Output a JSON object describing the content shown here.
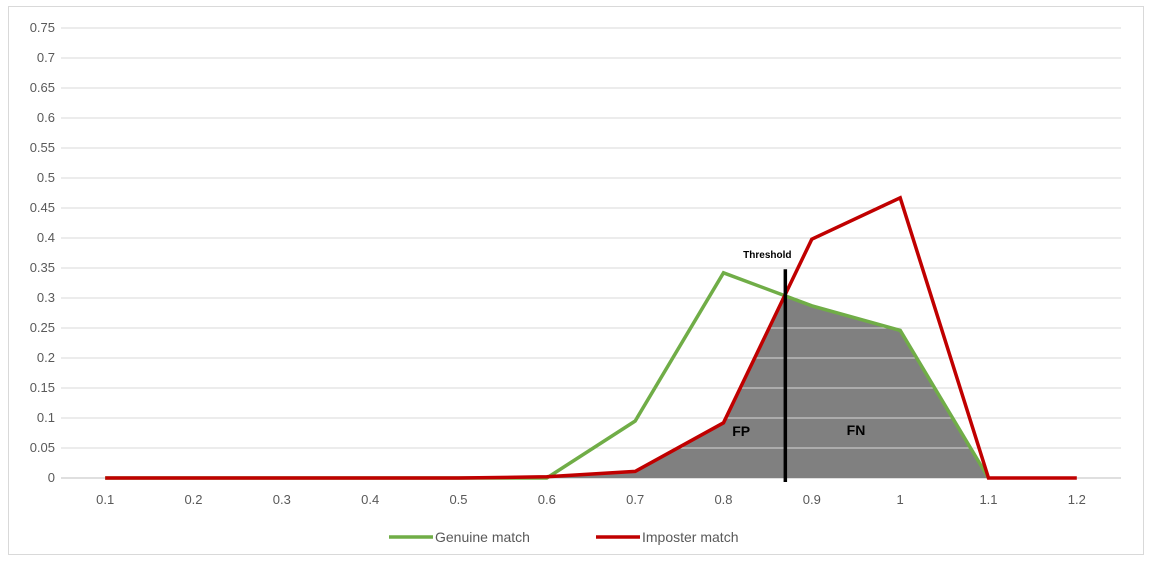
{
  "chart_data": {
    "type": "line",
    "x": [
      0.1,
      0.2,
      0.3,
      0.4,
      0.5,
      0.6,
      0.7,
      0.8,
      0.9,
      1,
      1.1,
      1.2
    ],
    "x_tick_labels": [
      "0.1",
      "0.2",
      "0.3",
      "0.4",
      "0.5",
      "0.6",
      "0.7",
      "0.8",
      "0.9",
      "1",
      "1.1",
      "1.2"
    ],
    "y_tick_labels": [
      "0",
      "0.05",
      "0.1",
      "0.15",
      "0.2",
      "0.25",
      "0.3",
      "0.35",
      "0.4",
      "0.45",
      "0.5",
      "0.55",
      "0.6",
      "0.65",
      "0.7",
      "0.75"
    ],
    "ylim": [
      0,
      0.75
    ],
    "grid": "horizontal",
    "legend_position": "bottom",
    "series": [
      {
        "name": "Genuine match",
        "color": "#70ad47",
        "x": [
          0.1,
          0.2,
          0.3,
          0.4,
          0.5,
          0.6,
          0.7,
          0.8,
          0.9,
          1,
          1.1
        ],
        "values": [
          0,
          0,
          0,
          0,
          0,
          0,
          0.095,
          0.342,
          0.287,
          0.246,
          0
        ]
      },
      {
        "name": "Imposter match",
        "color": "#c00000",
        "x": [
          0.1,
          0.2,
          0.3,
          0.4,
          0.5,
          0.6,
          0.7,
          0.8,
          0.9,
          1,
          1.1,
          1.2
        ],
        "values": [
          0,
          0,
          0,
          0,
          0,
          0.002,
          0.011,
          0.092,
          0.398,
          0.467,
          0,
          0
        ]
      }
    ],
    "overlap_fill_color": "#808080",
    "threshold": {
      "label": "Threshold",
      "x": 0.87,
      "top": 0.348
    },
    "annotations": [
      {
        "text": "FP",
        "x": 0.82,
        "y": 0.07
      },
      {
        "text": "FN",
        "x": 0.95,
        "y": 0.072
      }
    ]
  }
}
